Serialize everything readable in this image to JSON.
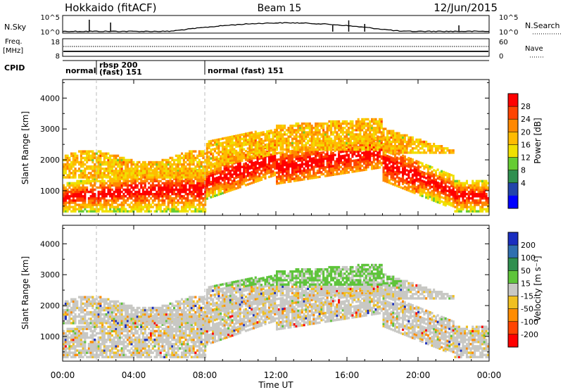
{
  "header": {
    "station": "Hokkaido (fitACF)",
    "beam": "Beam 15",
    "date": "12/Jun/2015"
  },
  "chart_data": [
    {
      "type": "line",
      "panel": "noise",
      "left_label": "N.Sky",
      "right_label": "N.Search",
      "left_ticks": [
        "10^5",
        "10^0"
      ],
      "right_ticks": [
        "10^5",
        "10^0"
      ]
    },
    {
      "type": "line",
      "panel": "frequency",
      "left_label_1": "Freq.",
      "left_label_2": "[MHz]",
      "right_label": "Nave",
      "left_ticks": [
        "18",
        "8"
      ],
      "right_ticks": [
        "60",
        "0"
      ]
    },
    {
      "type": "table",
      "panel": "cpid",
      "label": "CPID",
      "segments": [
        {
          "start_h": 0,
          "end_h": 1.9,
          "name": "normal",
          "name2": ""
        },
        {
          "start_h": 1.9,
          "end_h": 8.0,
          "name": "rbsp 200",
          "name2": "(fast) 151"
        },
        {
          "start_h": 8.0,
          "end_h": 24,
          "name": "normal (fast) 151",
          "name2": ""
        }
      ]
    },
    {
      "type": "heatmap",
      "panel": "power",
      "ylabel": "Slant Range [km]",
      "yticks": [
        1000,
        2000,
        3000,
        4000
      ],
      "ylim": [
        200,
        4600
      ],
      "colorbar_label": "Power [dB]",
      "colorbar_ticks": [
        "28",
        "24",
        "20",
        "16",
        "12",
        "8",
        "4"
      ],
      "colorbar_colors": [
        "#ff0000",
        "#ff4400",
        "#ff8800",
        "#ffbb00",
        "#f0e000",
        "#66cc33",
        "#2f8f4f",
        "#2244aa",
        "#0000ff"
      ]
    },
    {
      "type": "heatmap",
      "panel": "velocity",
      "ylabel": "Slant Range [km]",
      "yticks": [
        1000,
        2000,
        3000,
        4000
      ],
      "ylim": [
        200,
        4600
      ],
      "xlabel": "Time UT",
      "xticks": [
        "00:00",
        "04:00",
        "08:00",
        "12:00",
        "16:00",
        "20:00",
        "00:00"
      ],
      "xlim_hours": [
        0,
        24
      ],
      "colorbar_label": "Velocity [m s⁻¹]",
      "colorbar_ticks": [
        "200",
        "100",
        "50",
        "15",
        "-15",
        "-50",
        "-100",
        "-200"
      ],
      "colorbar_colors": [
        "#1a2ec0",
        "#2f6fb0",
        "#2f8f4f",
        "#5ec43a",
        "#c8c8c4",
        "#f0c020",
        "#ff8c00",
        "#ff4400",
        "#ff0000"
      ]
    }
  ]
}
